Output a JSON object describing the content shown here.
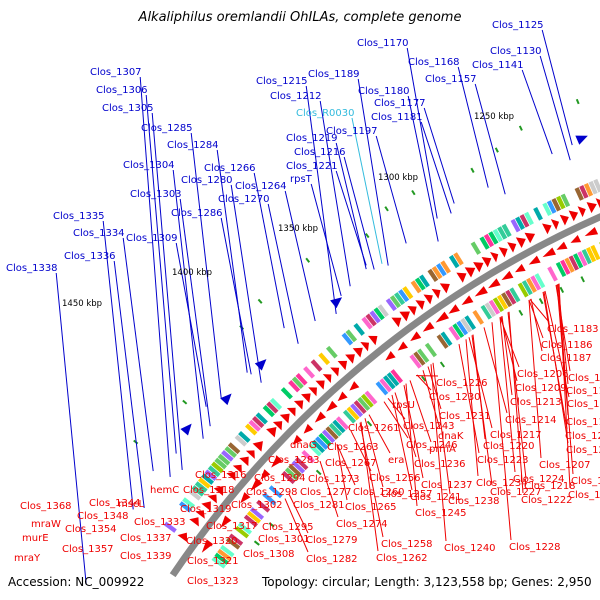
{
  "title": "Alkaliphilus oremlandii OhILAs, complete genome",
  "footer": {
    "accession": "Accession: NC_009922",
    "summary": "Topology: circular; Length: 3,123,558 bp; Genes: 2,950"
  },
  "colors": {
    "forward": "#0000cc",
    "reverse": "#ee0000",
    "rna": "#33bbdd",
    "backbone": "#888888"
  },
  "scale_labels": [
    "1250 kbp",
    "1300 kbp",
    "1350 kbp",
    "1400 kbp",
    "1450 kbp"
  ],
  "forward_labels": [
    "Clos_1125",
    "Clos_1130",
    "Clos_1141",
    "Clos_1157",
    "Clos_1168",
    "Clos_1170",
    "Clos_1177",
    "Clos_1180",
    "Clos_1181",
    "Clos_1189",
    "Clos_1197",
    "Clos_1212",
    "Clos_1215",
    "Clos_1216",
    "Clos_1219",
    "Clos_1221",
    "rpsT",
    "Clos_1264",
    "Clos_1266",
    "Clos_1270",
    "Clos_1280",
    "Clos_1284",
    "Clos_1285",
    "Clos_1286",
    "Clos_1303",
    "Clos_1304",
    "Clos_1305",
    "Clos_1306",
    "Clos_1307",
    "Clos_1309",
    "Clos_1334",
    "Clos_1335",
    "Clos_1336",
    "Clos_1338"
  ],
  "rna_labels": [
    "Clos_R0030"
  ],
  "reverse_labels": [
    "Clos_1183",
    "Clos_1186",
    "Clos_1187",
    "Clos_1188",
    "Clos_1193",
    "Clos_1196",
    "Clos_1198",
    "Clos_1201",
    "Clos_1204",
    "Clos_1206",
    "Clos_1207",
    "Clos_1208",
    "Clos_1209",
    "Clos_1211",
    "Clos_1213",
    "Clos_1214",
    "Clos_1217",
    "Clos_1218",
    "Clos_1220",
    "Clos_1222",
    "Clos_1223",
    "Clos_1224",
    "Clos_1226",
    "Clos_1227",
    "Clos_1228",
    "Clos_1230",
    "Clos_1231",
    "Clos_1234",
    "dnaK",
    "prmA",
    "Clos_1236",
    "Clos_1237",
    "Clos_1238",
    "Clos_1240",
    "Clos_1241",
    "Clos_1243",
    "rpsU",
    "Clos_1245",
    "Clos_1246",
    "era",
    "Clos_1256",
    "Clos_1257",
    "Clos_1258",
    "Clos_1260",
    "Clos_1261",
    "Clos_1262",
    "Clos_1263",
    "Clos_1265",
    "Clos_1267",
    "Clos_1273",
    "Clos_1274",
    "dnaG",
    "Clos_1277",
    "Clos_1279",
    "Clos_1281",
    "Clos_1282",
    "Clos_1283",
    "Clos_1294",
    "Clos_1295",
    "Clos_1298",
    "Clos_1301",
    "Clos_1302",
    "Clos_1308",
    "Clos_1316",
    "Clos_1317",
    "Clos_1318",
    "Clos_1319",
    "Clos_1320",
    "Clos_1321",
    "Clos_1323",
    "hemC",
    "Clos_1333",
    "mscL",
    "Clos_1337",
    "Clos_1339",
    "Clos_1344",
    "Clos_1348",
    "Clos_1354",
    "Clos_1357",
    "Clos_1368",
    "mraW",
    "murE",
    "mraY"
  ]
}
